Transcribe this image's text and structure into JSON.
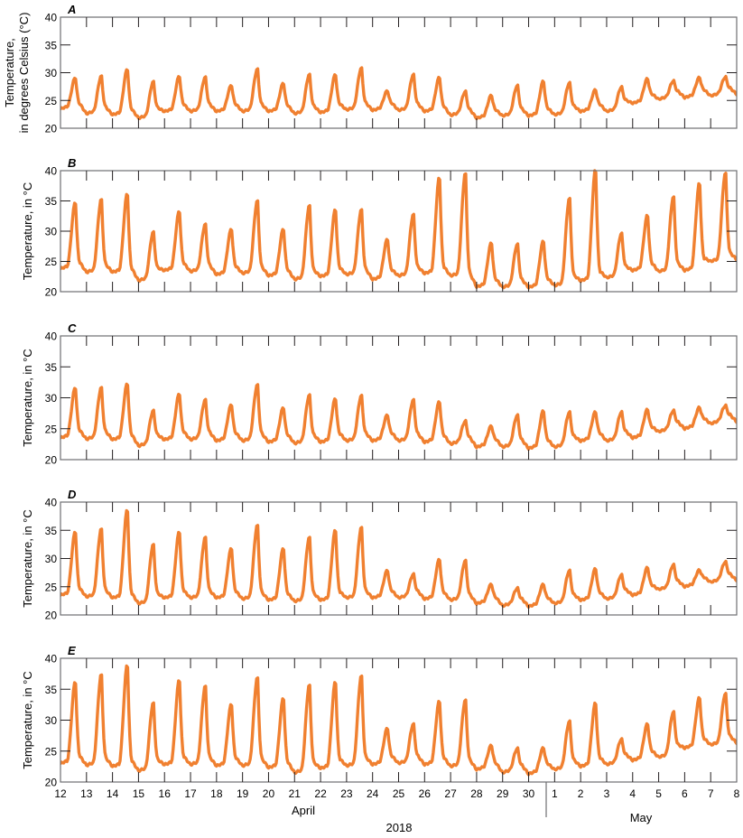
{
  "figure": {
    "year_label": "2018",
    "month_labels": [
      "April",
      "May"
    ],
    "x_ticks": [
      "12",
      "13",
      "14",
      "15",
      "16",
      "17",
      "18",
      "19",
      "20",
      "21",
      "22",
      "23",
      "24",
      "25",
      "26",
      "27",
      "28",
      "29",
      "30",
      "1",
      "2",
      "3",
      "4",
      "5",
      "6",
      "7",
      "8"
    ],
    "y_ticks": [
      "20",
      "25",
      "30",
      "35",
      "40"
    ],
    "line_color": "#F08030",
    "axis_color": "#231f20"
  },
  "chart_data": [
    {
      "panel": "A",
      "type": "line",
      "ylabel": "Temperature, in degrees Celsius (°C)",
      "ylabel_lines": [
        "Temperature,",
        "in degrees Celsius (°C)"
      ],
      "xlabel": "April–May 2018",
      "ylim": [
        20,
        40
      ],
      "x": [
        "Apr 12",
        "Apr 13",
        "Apr 14",
        "Apr 15",
        "Apr 16",
        "Apr 17",
        "Apr 18",
        "Apr 19",
        "Apr 20",
        "Apr 21",
        "Apr 22",
        "Apr 23",
        "Apr 24",
        "Apr 25",
        "Apr 26",
        "Apr 27",
        "Apr 28",
        "Apr 29",
        "Apr 30",
        "May 1",
        "May 2",
        "May 3",
        "May 4",
        "May 5",
        "May 6",
        "May 7"
      ],
      "daily_max": [
        29.2,
        29.5,
        30.8,
        28.5,
        29.5,
        29.3,
        27.8,
        30.8,
        28.2,
        29.8,
        29.8,
        31.0,
        26.8,
        29.8,
        29.3,
        26.7,
        26.0,
        27.8,
        28.6,
        28.3,
        27.0,
        27.5,
        29.0,
        28.6,
        29.2,
        29.3
      ],
      "daily_min": [
        23.5,
        22.6,
        22.4,
        21.8,
        23.0,
        23.0,
        23.0,
        23.0,
        23.0,
        22.6,
        22.8,
        23.3,
        23.2,
        23.2,
        23.0,
        22.3,
        21.8,
        22.2,
        22.2,
        22.4,
        23.0,
        23.0,
        24.5,
        25.2,
        25.5,
        25.8
      ]
    },
    {
      "panel": "B",
      "type": "line",
      "ylabel": "Temperature, in °C",
      "ylim": [
        20,
        40
      ],
      "x": [
        "Apr 12",
        "Apr 13",
        "Apr 14",
        "Apr 15",
        "Apr 16",
        "Apr 17",
        "Apr 18",
        "Apr 19",
        "Apr 20",
        "Apr 21",
        "Apr 22",
        "Apr 23",
        "Apr 24",
        "Apr 25",
        "Apr 26",
        "Apr 27",
        "Apr 28",
        "Apr 29",
        "Apr 30",
        "May 1",
        "May 2",
        "May 3",
        "May 4",
        "May 5",
        "May 6",
        "May 7"
      ],
      "daily_max": [
        35.0,
        35.5,
        36.5,
        30.0,
        33.5,
        31.3,
        30.5,
        35.3,
        30.5,
        34.5,
        33.8,
        33.8,
        28.8,
        33.0,
        39.2,
        40.0,
        28.2,
        28.0,
        28.5,
        35.8,
        40.5,
        29.8,
        32.8,
        36.0,
        38.2,
        40.0
      ],
      "daily_min": [
        23.8,
        23.2,
        23.2,
        21.8,
        23.5,
        23.3,
        22.8,
        23.0,
        22.6,
        22.0,
        22.5,
        22.8,
        22.0,
        22.6,
        23.0,
        22.6,
        20.8,
        20.7,
        20.7,
        21.0,
        21.8,
        22.3,
        23.5,
        23.3,
        23.5,
        25.0
      ]
    },
    {
      "panel": "C",
      "type": "line",
      "ylabel": "Temperature, in °C",
      "ylim": [
        20,
        40
      ],
      "x": [
        "Apr 12",
        "Apr 13",
        "Apr 14",
        "Apr 15",
        "Apr 16",
        "Apr 17",
        "Apr 18",
        "Apr 19",
        "Apr 20",
        "Apr 21",
        "Apr 22",
        "Apr 23",
        "Apr 24",
        "Apr 25",
        "Apr 26",
        "Apr 27",
        "Apr 28",
        "Apr 29",
        "Apr 30",
        "May 1",
        "May 2",
        "May 3",
        "May 4",
        "May 5",
        "May 6",
        "May 7"
      ],
      "daily_max": [
        31.8,
        31.8,
        32.5,
        28.0,
        30.8,
        29.8,
        29.0,
        32.3,
        28.5,
        30.6,
        30.0,
        30.5,
        27.3,
        29.8,
        29.5,
        26.3,
        25.5,
        27.3,
        28.0,
        27.8,
        27.8,
        27.8,
        28.2,
        28.0,
        28.5,
        28.8
      ],
      "daily_min": [
        23.5,
        23.3,
        23.2,
        22.2,
        23.2,
        23.2,
        23.0,
        23.0,
        22.8,
        22.6,
        22.8,
        23.0,
        23.0,
        23.0,
        22.8,
        22.5,
        22.0,
        22.0,
        21.8,
        22.0,
        23.0,
        23.0,
        23.5,
        24.5,
        25.0,
        25.8
      ]
    },
    {
      "panel": "D",
      "type": "line",
      "ylabel": "Temperature, in °C",
      "ylim": [
        20,
        40
      ],
      "x": [
        "Apr 12",
        "Apr 13",
        "Apr 14",
        "Apr 15",
        "Apr 16",
        "Apr 17",
        "Apr 18",
        "Apr 19",
        "Apr 20",
        "Apr 21",
        "Apr 22",
        "Apr 23",
        "Apr 24",
        "Apr 25",
        "Apr 26",
        "Apr 27",
        "Apr 28",
        "Apr 29",
        "Apr 30",
        "May 1",
        "May 2",
        "May 3",
        "May 4",
        "May 5",
        "May 6",
        "May 7"
      ],
      "daily_max": [
        35.0,
        35.5,
        39.0,
        32.7,
        35.0,
        34.0,
        32.0,
        36.2,
        32.0,
        34.0,
        35.3,
        35.8,
        28.0,
        27.3,
        30.0,
        29.8,
        25.5,
        24.8,
        25.5,
        28.0,
        28.3,
        27.2,
        28.5,
        29.0,
        28.0,
        29.5
      ],
      "daily_min": [
        23.5,
        23.2,
        23.0,
        22.0,
        23.0,
        23.0,
        23.0,
        22.8,
        22.6,
        22.4,
        22.6,
        23.0,
        23.0,
        23.0,
        22.8,
        22.6,
        22.0,
        21.6,
        21.5,
        22.0,
        22.6,
        22.8,
        23.5,
        24.5,
        25.0,
        25.8
      ]
    },
    {
      "panel": "E",
      "type": "line",
      "ylabel": "Temperature, in °C",
      "ylim": [
        20,
        40
      ],
      "x": [
        "Apr 12",
        "Apr 13",
        "Apr 14",
        "Apr 15",
        "Apr 16",
        "Apr 17",
        "Apr 18",
        "Apr 19",
        "Apr 20",
        "Apr 21",
        "Apr 22",
        "Apr 23",
        "Apr 24",
        "Apr 25",
        "Apr 26",
        "Apr 27",
        "Apr 28",
        "Apr 29",
        "Apr 30",
        "May 1",
        "May 2",
        "May 3",
        "May 4",
        "May 5",
        "May 6",
        "May 7"
      ],
      "daily_max": [
        36.5,
        37.7,
        39.3,
        33.0,
        36.8,
        35.8,
        32.8,
        37.2,
        33.8,
        36.0,
        36.5,
        37.5,
        28.8,
        29.5,
        33.3,
        33.5,
        26.0,
        25.5,
        25.6,
        30.0,
        33.0,
        27.0,
        29.5,
        31.5,
        33.8,
        34.5
      ],
      "daily_min": [
        23.0,
        22.7,
        22.5,
        21.8,
        22.8,
        22.8,
        22.6,
        22.6,
        22.3,
        21.5,
        22.2,
        22.6,
        22.8,
        23.0,
        22.8,
        22.5,
        22.0,
        21.5,
        21.3,
        22.0,
        22.5,
        22.8,
        23.5,
        24.0,
        25.5,
        26.0
      ]
    }
  ]
}
